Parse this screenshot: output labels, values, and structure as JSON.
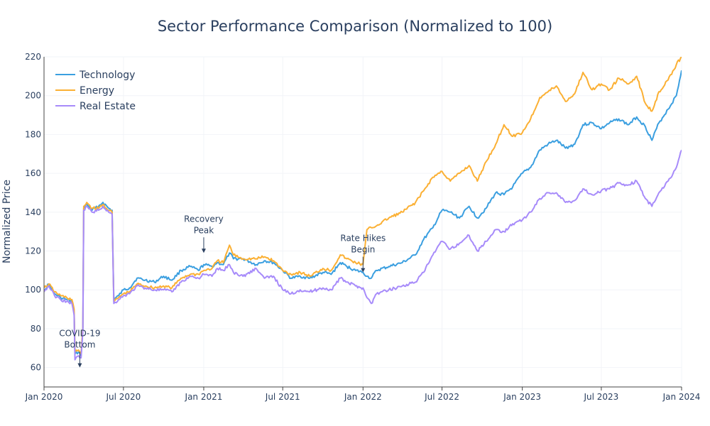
{
  "chart_data": {
    "type": "line",
    "title": "Sector Performance Comparison (Normalized to 100)",
    "ylabel": "Normalized Price",
    "xlabel": "",
    "x_range": [
      "2020-01-01",
      "2024-01-01"
    ],
    "x_ticks": [
      {
        "date": "2020-01-01",
        "label": "Jan 2020"
      },
      {
        "date": "2020-07-01",
        "label": "Jul 2020"
      },
      {
        "date": "2021-01-01",
        "label": "Jan 2021"
      },
      {
        "date": "2021-07-01",
        "label": "Jul 2021"
      },
      {
        "date": "2022-01-01",
        "label": "Jan 2022"
      },
      {
        "date": "2022-07-01",
        "label": "Jul 2022"
      },
      {
        "date": "2023-01-01",
        "label": "Jan 2023"
      },
      {
        "date": "2023-07-01",
        "label": "Jul 2023"
      },
      {
        "date": "2024-01-01",
        "label": "Jan 2024"
      }
    ],
    "ylim": [
      50,
      220
    ],
    "y_ticks": [
      60,
      80,
      100,
      120,
      140,
      160,
      180,
      200,
      220
    ],
    "grid": true,
    "legend_position": "top-left",
    "series": [
      {
        "name": "Technology",
        "color": "#3b9fe0",
        "points": [
          [
            "2020-01-01",
            100
          ],
          [
            "2020-01-12",
            103
          ],
          [
            "2020-01-25",
            98
          ],
          [
            "2020-02-08",
            96
          ],
          [
            "2020-02-22",
            95
          ],
          [
            "2020-03-05",
            94
          ],
          [
            "2020-03-10",
            88
          ],
          [
            "2020-03-12",
            67
          ],
          [
            "2020-03-20",
            68
          ],
          [
            "2020-03-26",
            66
          ],
          [
            "2020-03-30",
            80
          ],
          [
            "2020-04-01",
            142
          ],
          [
            "2020-04-08",
            144
          ],
          [
            "2020-04-20",
            141
          ],
          [
            "2020-05-05",
            143
          ],
          [
            "2020-05-15",
            145
          ],
          [
            "2020-05-28",
            142
          ],
          [
            "2020-06-05",
            141
          ],
          [
            "2020-06-09",
            95
          ],
          [
            "2020-06-20",
            97
          ],
          [
            "2020-07-01",
            100
          ],
          [
            "2020-07-15",
            101
          ],
          [
            "2020-08-01",
            106
          ],
          [
            "2020-08-20",
            105
          ],
          [
            "2020-09-10",
            104
          ],
          [
            "2020-10-01",
            107
          ],
          [
            "2020-10-20",
            105
          ],
          [
            "2020-11-10",
            110
          ],
          [
            "2020-12-01",
            112
          ],
          [
            "2020-12-20",
            110
          ],
          [
            "2021-01-01",
            113
          ],
          [
            "2021-01-20",
            112
          ],
          [
            "2021-02-01",
            114
          ],
          [
            "2021-02-15",
            113
          ],
          [
            "2021-03-01",
            119
          ],
          [
            "2021-03-10",
            116
          ],
          [
            "2021-04-01",
            116
          ],
          [
            "2021-05-01",
            113
          ],
          [
            "2021-05-20",
            115
          ],
          [
            "2021-06-10",
            114
          ],
          [
            "2021-07-01",
            110
          ],
          [
            "2021-07-20",
            106
          ],
          [
            "2021-08-10",
            107
          ],
          [
            "2021-09-01",
            106
          ],
          [
            "2021-10-01",
            109
          ],
          [
            "2021-10-20",
            108
          ],
          [
            "2021-11-10",
            114
          ],
          [
            "2021-11-25",
            112
          ],
          [
            "2021-12-15",
            110
          ],
          [
            "2022-01-01",
            109
          ],
          [
            "2022-01-10",
            107
          ],
          [
            "2022-01-20",
            106
          ],
          [
            "2022-02-01",
            110
          ],
          [
            "2022-03-01",
            112
          ],
          [
            "2022-04-01",
            114
          ],
          [
            "2022-05-01",
            118
          ],
          [
            "2022-05-20",
            126
          ],
          [
            "2022-06-10",
            132
          ],
          [
            "2022-07-01",
            141
          ],
          [
            "2022-07-20",
            140
          ],
          [
            "2022-08-10",
            137
          ],
          [
            "2022-09-01",
            143
          ],
          [
            "2022-09-20",
            137
          ],
          [
            "2022-10-10",
            142
          ],
          [
            "2022-11-01",
            150
          ],
          [
            "2022-11-20",
            149
          ],
          [
            "2022-12-10",
            153
          ],
          [
            "2023-01-01",
            160
          ],
          [
            "2023-01-20",
            163
          ],
          [
            "2023-02-10",
            172
          ],
          [
            "2023-03-01",
            175
          ],
          [
            "2023-03-20",
            177
          ],
          [
            "2023-04-10",
            173
          ],
          [
            "2023-05-01",
            175
          ],
          [
            "2023-05-20",
            185
          ],
          [
            "2023-06-10",
            186
          ],
          [
            "2023-07-01",
            183
          ],
          [
            "2023-07-20",
            186
          ],
          [
            "2023-08-10",
            188
          ],
          [
            "2023-09-01",
            185
          ],
          [
            "2023-09-20",
            189
          ],
          [
            "2023-10-10",
            184
          ],
          [
            "2023-10-25",
            177
          ],
          [
            "2023-11-10",
            186
          ],
          [
            "2023-12-01",
            193
          ],
          [
            "2023-12-20",
            200
          ],
          [
            "2024-01-01",
            213
          ]
        ]
      },
      {
        "name": "Energy",
        "color": "#fbb034",
        "points": [
          [
            "2020-01-01",
            101
          ],
          [
            "2020-01-12",
            103
          ],
          [
            "2020-01-25",
            99
          ],
          [
            "2020-02-08",
            97
          ],
          [
            "2020-02-22",
            96
          ],
          [
            "2020-03-05",
            95
          ],
          [
            "2020-03-10",
            90
          ],
          [
            "2020-03-12",
            68
          ],
          [
            "2020-03-20",
            69
          ],
          [
            "2020-03-26",
            67
          ],
          [
            "2020-03-30",
            81
          ],
          [
            "2020-04-01",
            143
          ],
          [
            "2020-04-08",
            145
          ],
          [
            "2020-04-20",
            142
          ],
          [
            "2020-05-05",
            142
          ],
          [
            "2020-05-15",
            144
          ],
          [
            "2020-05-28",
            141
          ],
          [
            "2020-06-05",
            140
          ],
          [
            "2020-06-09",
            94
          ],
          [
            "2020-06-20",
            96
          ],
          [
            "2020-07-01",
            98
          ],
          [
            "2020-07-15",
            99
          ],
          [
            "2020-08-01",
            103
          ],
          [
            "2020-08-20",
            102
          ],
          [
            "2020-09-10",
            101
          ],
          [
            "2020-10-01",
            102
          ],
          [
            "2020-10-20",
            101
          ],
          [
            "2020-11-10",
            106
          ],
          [
            "2020-12-01",
            108
          ],
          [
            "2020-12-20",
            108
          ],
          [
            "2021-01-01",
            110
          ],
          [
            "2021-01-20",
            111
          ],
          [
            "2021-02-01",
            115
          ],
          [
            "2021-02-15",
            114
          ],
          [
            "2021-03-01",
            123
          ],
          [
            "2021-03-10",
            118
          ],
          [
            "2021-04-01",
            116
          ],
          [
            "2021-05-01",
            116
          ],
          [
            "2021-05-20",
            117
          ],
          [
            "2021-06-10",
            115
          ],
          [
            "2021-07-01",
            110
          ],
          [
            "2021-07-20",
            108
          ],
          [
            "2021-08-10",
            109
          ],
          [
            "2021-09-01",
            107
          ],
          [
            "2021-10-01",
            111
          ],
          [
            "2021-10-20",
            110
          ],
          [
            "2021-11-10",
            118
          ],
          [
            "2021-11-25",
            116
          ],
          [
            "2021-12-15",
            114
          ],
          [
            "2022-01-01",
            113
          ],
          [
            "2022-01-10",
            131
          ],
          [
            "2022-01-20",
            132
          ],
          [
            "2022-02-01",
            133
          ],
          [
            "2022-03-01",
            137
          ],
          [
            "2022-04-01",
            140
          ],
          [
            "2022-05-01",
            145
          ],
          [
            "2022-05-20",
            151
          ],
          [
            "2022-06-10",
            158
          ],
          [
            "2022-07-01",
            161
          ],
          [
            "2022-07-20",
            156
          ],
          [
            "2022-08-10",
            160
          ],
          [
            "2022-09-01",
            164
          ],
          [
            "2022-09-20",
            156
          ],
          [
            "2022-10-10",
            166
          ],
          [
            "2022-11-01",
            175
          ],
          [
            "2022-11-20",
            185
          ],
          [
            "2022-12-10",
            179
          ],
          [
            "2023-01-01",
            181
          ],
          [
            "2023-01-20",
            188
          ],
          [
            "2023-02-10",
            199
          ],
          [
            "2023-03-01",
            202
          ],
          [
            "2023-03-20",
            205
          ],
          [
            "2023-04-10",
            197
          ],
          [
            "2023-05-01",
            201
          ],
          [
            "2023-05-20",
            212
          ],
          [
            "2023-06-10",
            203
          ],
          [
            "2023-07-01",
            206
          ],
          [
            "2023-07-20",
            203
          ],
          [
            "2023-08-10",
            209
          ],
          [
            "2023-09-01",
            206
          ],
          [
            "2023-09-20",
            210
          ],
          [
            "2023-10-10",
            196
          ],
          [
            "2023-10-25",
            192
          ],
          [
            "2023-11-10",
            202
          ],
          [
            "2023-12-01",
            208
          ],
          [
            "2023-12-20",
            216
          ],
          [
            "2024-01-01",
            220
          ]
        ]
      },
      {
        "name": "Real Estate",
        "color": "#a78bfa",
        "points": [
          [
            "2020-01-01",
            99
          ],
          [
            "2020-01-12",
            102
          ],
          [
            "2020-01-25",
            97
          ],
          [
            "2020-02-08",
            95
          ],
          [
            "2020-02-22",
            94
          ],
          [
            "2020-03-05",
            93
          ],
          [
            "2020-03-10",
            87
          ],
          [
            "2020-03-12",
            64
          ],
          [
            "2020-03-20",
            66
          ],
          [
            "2020-03-26",
            65
          ],
          [
            "2020-03-30",
            79
          ],
          [
            "2020-04-01",
            141
          ],
          [
            "2020-04-08",
            143
          ],
          [
            "2020-04-20",
            140
          ],
          [
            "2020-05-05",
            141
          ],
          [
            "2020-05-15",
            143
          ],
          [
            "2020-05-28",
            140
          ],
          [
            "2020-06-05",
            139
          ],
          [
            "2020-06-09",
            93
          ],
          [
            "2020-06-20",
            95
          ],
          [
            "2020-07-01",
            97
          ],
          [
            "2020-07-15",
            98
          ],
          [
            "2020-08-01",
            102
          ],
          [
            "2020-08-20",
            101
          ],
          [
            "2020-09-10",
            100
          ],
          [
            "2020-10-01",
            100
          ],
          [
            "2020-10-20",
            99
          ],
          [
            "2020-11-10",
            104
          ],
          [
            "2020-12-01",
            107
          ],
          [
            "2020-12-20",
            106
          ],
          [
            "2021-01-01",
            108
          ],
          [
            "2021-01-20",
            107
          ],
          [
            "2021-02-01",
            111
          ],
          [
            "2021-02-15",
            110
          ],
          [
            "2021-03-01",
            113
          ],
          [
            "2021-03-10",
            109
          ],
          [
            "2021-04-01",
            107
          ],
          [
            "2021-05-01",
            111
          ],
          [
            "2021-05-20",
            106
          ],
          [
            "2021-06-10",
            107
          ],
          [
            "2021-07-01",
            100
          ],
          [
            "2021-07-20",
            98
          ],
          [
            "2021-08-10",
            100
          ],
          [
            "2021-09-01",
            99
          ],
          [
            "2021-10-01",
            101
          ],
          [
            "2021-10-20",
            100
          ],
          [
            "2021-11-10",
            106
          ],
          [
            "2021-11-25",
            104
          ],
          [
            "2021-12-15",
            102
          ],
          [
            "2022-01-01",
            101
          ],
          [
            "2022-01-10",
            96
          ],
          [
            "2022-01-20",
            93
          ],
          [
            "2022-02-01",
            98
          ],
          [
            "2022-03-01",
            100
          ],
          [
            "2022-04-01",
            102
          ],
          [
            "2022-05-01",
            104
          ],
          [
            "2022-05-20",
            109
          ],
          [
            "2022-06-10",
            118
          ],
          [
            "2022-07-01",
            125
          ],
          [
            "2022-07-20",
            121
          ],
          [
            "2022-08-10",
            124
          ],
          [
            "2022-09-01",
            128
          ],
          [
            "2022-09-20",
            120
          ],
          [
            "2022-10-10",
            125
          ],
          [
            "2022-11-01",
            131
          ],
          [
            "2022-11-20",
            130
          ],
          [
            "2022-12-10",
            134
          ],
          [
            "2023-01-01",
            136
          ],
          [
            "2023-01-20",
            140
          ],
          [
            "2023-02-10",
            147
          ],
          [
            "2023-03-01",
            150
          ],
          [
            "2023-03-20",
            150
          ],
          [
            "2023-04-10",
            145
          ],
          [
            "2023-05-01",
            146
          ],
          [
            "2023-05-20",
            152
          ],
          [
            "2023-06-10",
            149
          ],
          [
            "2023-07-01",
            151
          ],
          [
            "2023-07-20",
            152
          ],
          [
            "2023-08-10",
            155
          ],
          [
            "2023-09-01",
            154
          ],
          [
            "2023-09-20",
            156
          ],
          [
            "2023-10-10",
            147
          ],
          [
            "2023-10-25",
            143
          ],
          [
            "2023-11-10",
            150
          ],
          [
            "2023-12-01",
            156
          ],
          [
            "2023-12-20",
            163
          ],
          [
            "2024-01-01",
            172
          ]
        ]
      }
    ],
    "annotations": [
      {
        "lines": [
          "COVID-19",
          "Bottom"
        ],
        "x": "2020-03-23",
        "y": 60
      },
      {
        "lines": [
          "Recovery",
          "Peak"
        ],
        "x": "2021-01-01",
        "y": 119
      },
      {
        "lines": [
          "Rate Hikes",
          "Begin"
        ],
        "x": "2022-01-01",
        "y": 109
      }
    ]
  }
}
